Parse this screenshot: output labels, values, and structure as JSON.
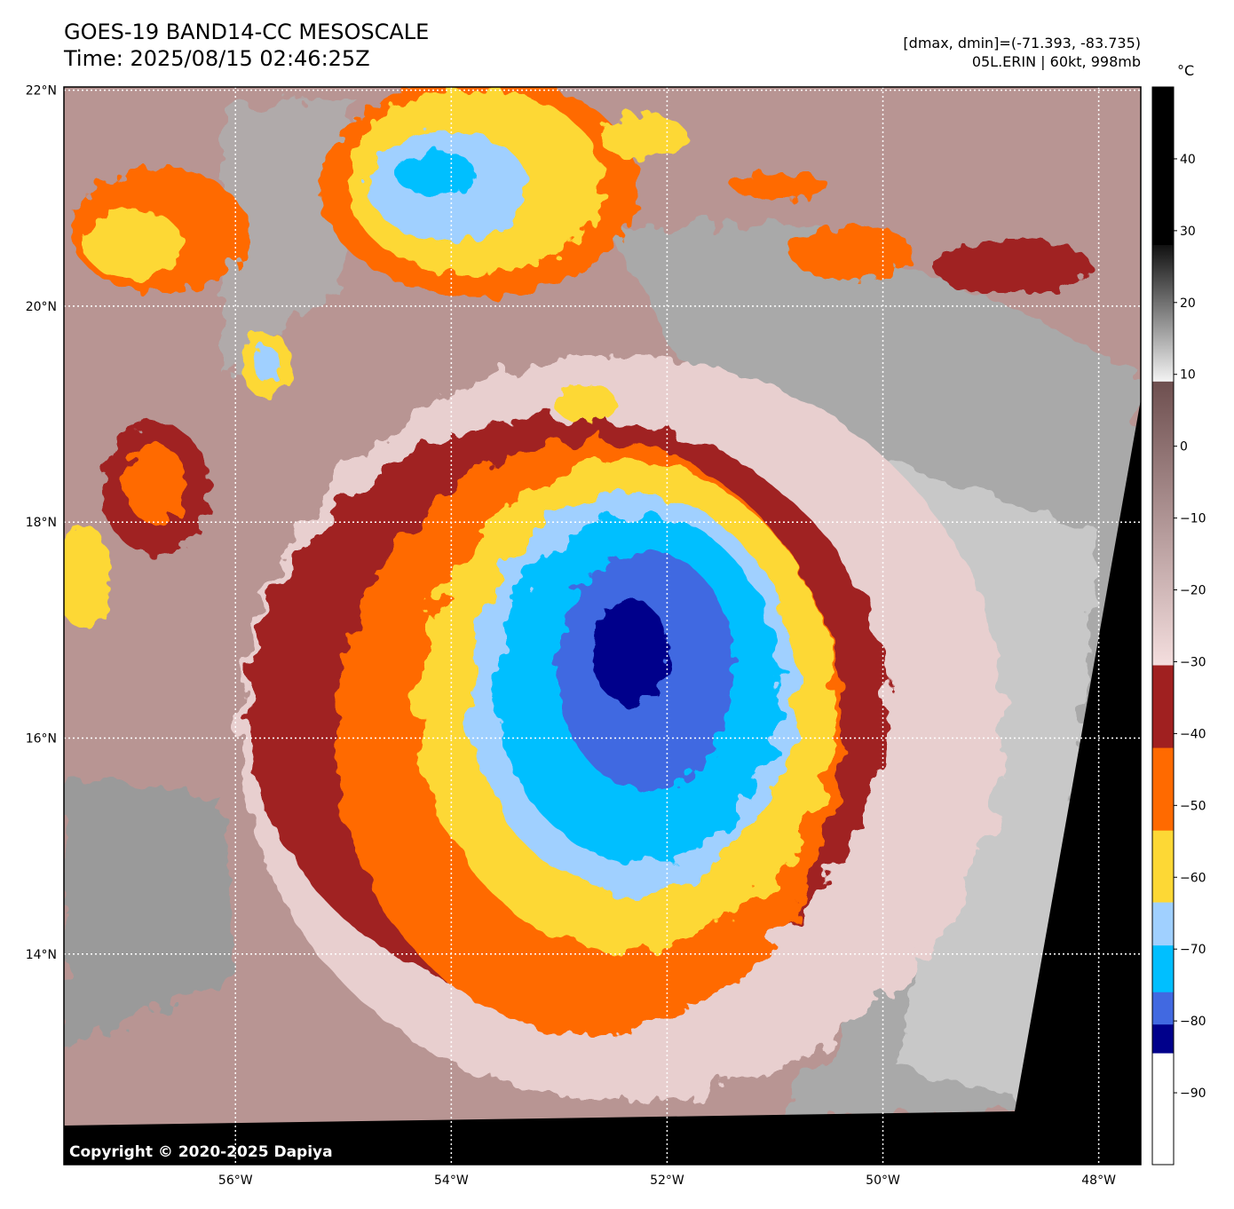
{
  "header": {
    "title_line1": "GOES-19 BAND14-CC MESOSCALE",
    "title_line2": "Time: 2025/08/15 02:46:25Z",
    "dmax_dmin": "[dmax, dmin]=(-71.393, -83.735)",
    "storm_info": "05L.ERIN | 60kt, 998mb"
  },
  "map": {
    "lon_range": [
      -57.59,
      -47.61
    ],
    "lat_range": [
      12.05,
      22.03
    ],
    "lon_ticks": [
      {
        "value": -56,
        "label": "56°W"
      },
      {
        "value": -54,
        "label": "54°W"
      },
      {
        "value": -52,
        "label": "52°W"
      },
      {
        "value": -50,
        "label": "50°W"
      },
      {
        "value": -48,
        "label": "48°W"
      }
    ],
    "lat_ticks": [
      {
        "value": 22,
        "label": "22°N"
      },
      {
        "value": 20,
        "label": "20°N"
      },
      {
        "value": 18,
        "label": "18°N"
      },
      {
        "value": 16,
        "label": "16°N"
      },
      {
        "value": 14,
        "label": "14°N"
      }
    ],
    "copyright": "Copyright © 2020-2025 Dapiya"
  },
  "colorbar": {
    "unit": "°C",
    "range": [
      -100,
      50
    ],
    "ticks": [
      40,
      30,
      20,
      10,
      0,
      -10,
      -20,
      -30,
      -40,
      -50,
      -60,
      -70,
      -80,
      -90
    ],
    "tick_labels": [
      "40",
      "30",
      "20",
      "10",
      "0",
      "−10",
      "−20",
      "−30",
      "−40",
      "−50",
      "−60",
      "−70",
      "−80",
      "−90"
    ],
    "segments": [
      {
        "from": 28,
        "to": 50,
        "color_top": "#000000",
        "color_bottom": "#000000"
      },
      {
        "from": 9,
        "to": 28,
        "color_top": "#111111",
        "color_bottom": "#f4f4f4"
      },
      {
        "from": -30.5,
        "to": 9,
        "color_top": "#6e4f4f",
        "color_bottom": "#f4dede"
      },
      {
        "from": -42,
        "to": -30.5,
        "color_top": "#a02020",
        "color_bottom": "#a02020"
      },
      {
        "from": -53.5,
        "to": -42,
        "color_top": "#ff6a00",
        "color_bottom": "#ff6a00"
      },
      {
        "from": -63.5,
        "to": -53.5,
        "color_top": "#fdd835",
        "color_bottom": "#fdd835"
      },
      {
        "from": -69.5,
        "to": -63.5,
        "color_top": "#a0d0ff",
        "color_bottom": "#a0d0ff"
      },
      {
        "from": -76,
        "to": -69.5,
        "color_top": "#00bfff",
        "color_bottom": "#00bfff"
      },
      {
        "from": -80.5,
        "to": -76,
        "color_top": "#4169e1",
        "color_bottom": "#4169e1"
      },
      {
        "from": -84.5,
        "to": -80.5,
        "color_top": "#00008b",
        "color_bottom": "#00008b"
      },
      {
        "from": -100,
        "to": -84.5,
        "color_top": "#ffffff",
        "color_bottom": "#ffffff"
      }
    ]
  }
}
